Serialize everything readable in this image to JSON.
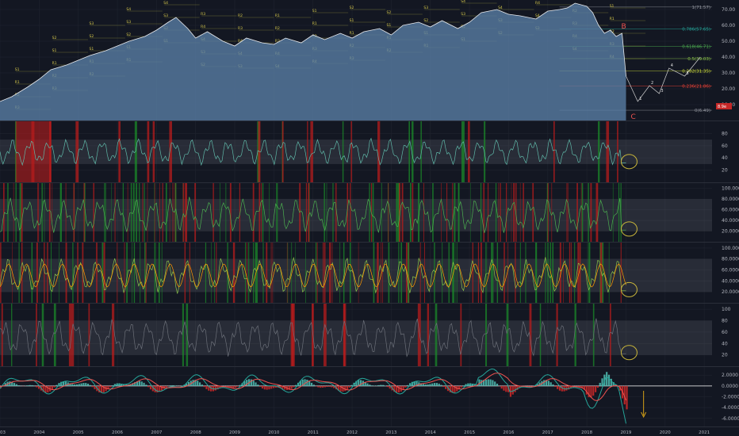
{
  "chart_data": {
    "type": "line",
    "title": "",
    "x_axis": {
      "labels": [
        "2003",
        "2004",
        "2005",
        "2006",
        "2007",
        "2008",
        "2009",
        "2010",
        "2011",
        "2012",
        "2013",
        "2014",
        "2015",
        "2016",
        "2017",
        "2018",
        "2019",
        "2020",
        "2021"
      ],
      "range": [
        2003,
        2021.2
      ]
    },
    "panels": [
      {
        "name": "price",
        "type": "area",
        "ylim": [
          0,
          76
        ],
        "y_ticks": [
          "70.00",
          "60.00",
          "50.00",
          "40.00",
          "30.00",
          "20.00",
          "10.00"
        ],
        "tick_values": [
          70,
          60,
          50,
          40,
          30,
          20,
          10
        ],
        "price_series": {
          "x": [
            2003.0,
            2003.3,
            2003.7,
            2004.0,
            2004.3,
            2004.7,
            2005.0,
            2005.3,
            2005.7,
            2006.0,
            2006.3,
            2006.7,
            2007.0,
            2007.3,
            2007.5,
            2007.8,
            2008.0,
            2008.3,
            2008.7,
            2009.0,
            2009.3,
            2009.7,
            2010.0,
            2010.3,
            2010.7,
            2011.0,
            2011.3,
            2011.7,
            2012.0,
            2012.3,
            2012.7,
            2013.0,
            2013.3,
            2013.7,
            2014.0,
            2014.3,
            2014.7,
            2015.0,
            2015.3,
            2015.7,
            2016.0,
            2016.3,
            2016.7,
            2017.0,
            2017.3,
            2017.5,
            2017.7,
            2017.85,
            2018.0,
            2018.15,
            2018.3,
            2018.45,
            2018.6,
            2018.75,
            2018.9,
            2019.0
          ],
          "y": [
            12,
            15,
            21,
            26,
            32,
            35,
            38,
            41,
            44,
            47,
            50,
            53,
            57,
            62,
            65,
            58,
            52,
            56,
            50,
            47,
            52,
            49,
            48,
            52,
            49,
            54,
            51,
            55,
            52,
            56,
            58,
            54,
            60,
            62,
            59,
            63,
            58,
            62,
            68,
            70,
            67,
            66,
            64,
            69,
            70,
            71,
            74,
            73,
            72,
            68,
            60,
            55,
            57,
            53,
            55,
            28
          ]
        },
        "fib_levels": [
          {
            "label": "1(71.57)",
            "value": 71.57,
            "color": "#9598a1"
          },
          {
            "label": "0.786(57.65)",
            "value": 57.65,
            "color": "#26a69a"
          },
          {
            "label": "0.618(46.71)",
            "value": 46.71,
            "color": "#4caf50"
          },
          {
            "label": "0.5(39.03)",
            "value": 39.03,
            "color": "#8bc34a"
          },
          {
            "label": "0.382(31.35)",
            "value": 31.35,
            "color": "#cddc39"
          },
          {
            "label": "0.236(21.86)",
            "value": 21.86,
            "color": "#f44336"
          },
          {
            "label": "0(6.49)",
            "value": 6.49,
            "color": "#9598a1"
          }
        ],
        "price_tag": "8.9e",
        "wave_labels": {
          "B": "B",
          "C": "C",
          "counts": [
            "1",
            "2",
            "3",
            "4",
            "5"
          ]
        },
        "level_tags": [
          "R4",
          "R3",
          "R2",
          "R1",
          "S1",
          "S2",
          "S3",
          "S4"
        ]
      },
      {
        "name": "oscillator-1",
        "ylim": [
          0,
          100
        ],
        "y_ticks": [
          "80",
          "60",
          "40",
          "20"
        ],
        "tick_values": [
          80,
          60,
          40,
          20
        ],
        "band": [
          30,
          70
        ],
        "line_color": "#5fb8a8"
      },
      {
        "name": "oscillator-2",
        "ylim": [
          0,
          110
        ],
        "y_ticks": [
          "100.0000",
          "80.0000",
          "60.0000",
          "40.0000",
          "20.0000"
        ],
        "tick_values": [
          100,
          80,
          60,
          40,
          20
        ],
        "band": [
          20,
          80
        ],
        "line_color": "#4caf50"
      },
      {
        "name": "oscillator-3",
        "ylim": [
          0,
          110
        ],
        "y_ticks": [
          "100.0000",
          "80.0000",
          "60.0000",
          "40.0000",
          "20.0000"
        ],
        "tick_values": [
          100,
          80,
          60,
          40,
          20
        ],
        "band": [
          20,
          80
        ],
        "line_color": "#8bc34a",
        "signal_color": "#ff9800"
      },
      {
        "name": "oscillator-4",
        "ylim": [
          0,
          110
        ],
        "y_ticks": [
          "100",
          "80",
          "60",
          "40",
          "20"
        ],
        "tick_values": [
          100,
          80,
          60,
          40,
          20
        ],
        "band": [
          20,
          80
        ],
        "line_color": "#6b6f78"
      },
      {
        "name": "macd",
        "ylim": [
          -7.5,
          3.5
        ],
        "y_ticks": [
          "2.0000",
          "0.0000",
          "-2.0000",
          "-4.0000",
          "-6.0000"
        ],
        "tick_values": [
          2,
          0,
          -2,
          -4,
          -6
        ],
        "macd_color": "#26a69a",
        "signal_color": "#ef5350"
      }
    ],
    "colors": {
      "background": "#131722",
      "overbought": "#b71c1c",
      "oversold": "#1b8a2a",
      "band": "#787b86",
      "price_fill": "#5a7fa6",
      "highlight_circle": "#c8b53a",
      "arrow": "#d4a017"
    },
    "grid": true
  }
}
